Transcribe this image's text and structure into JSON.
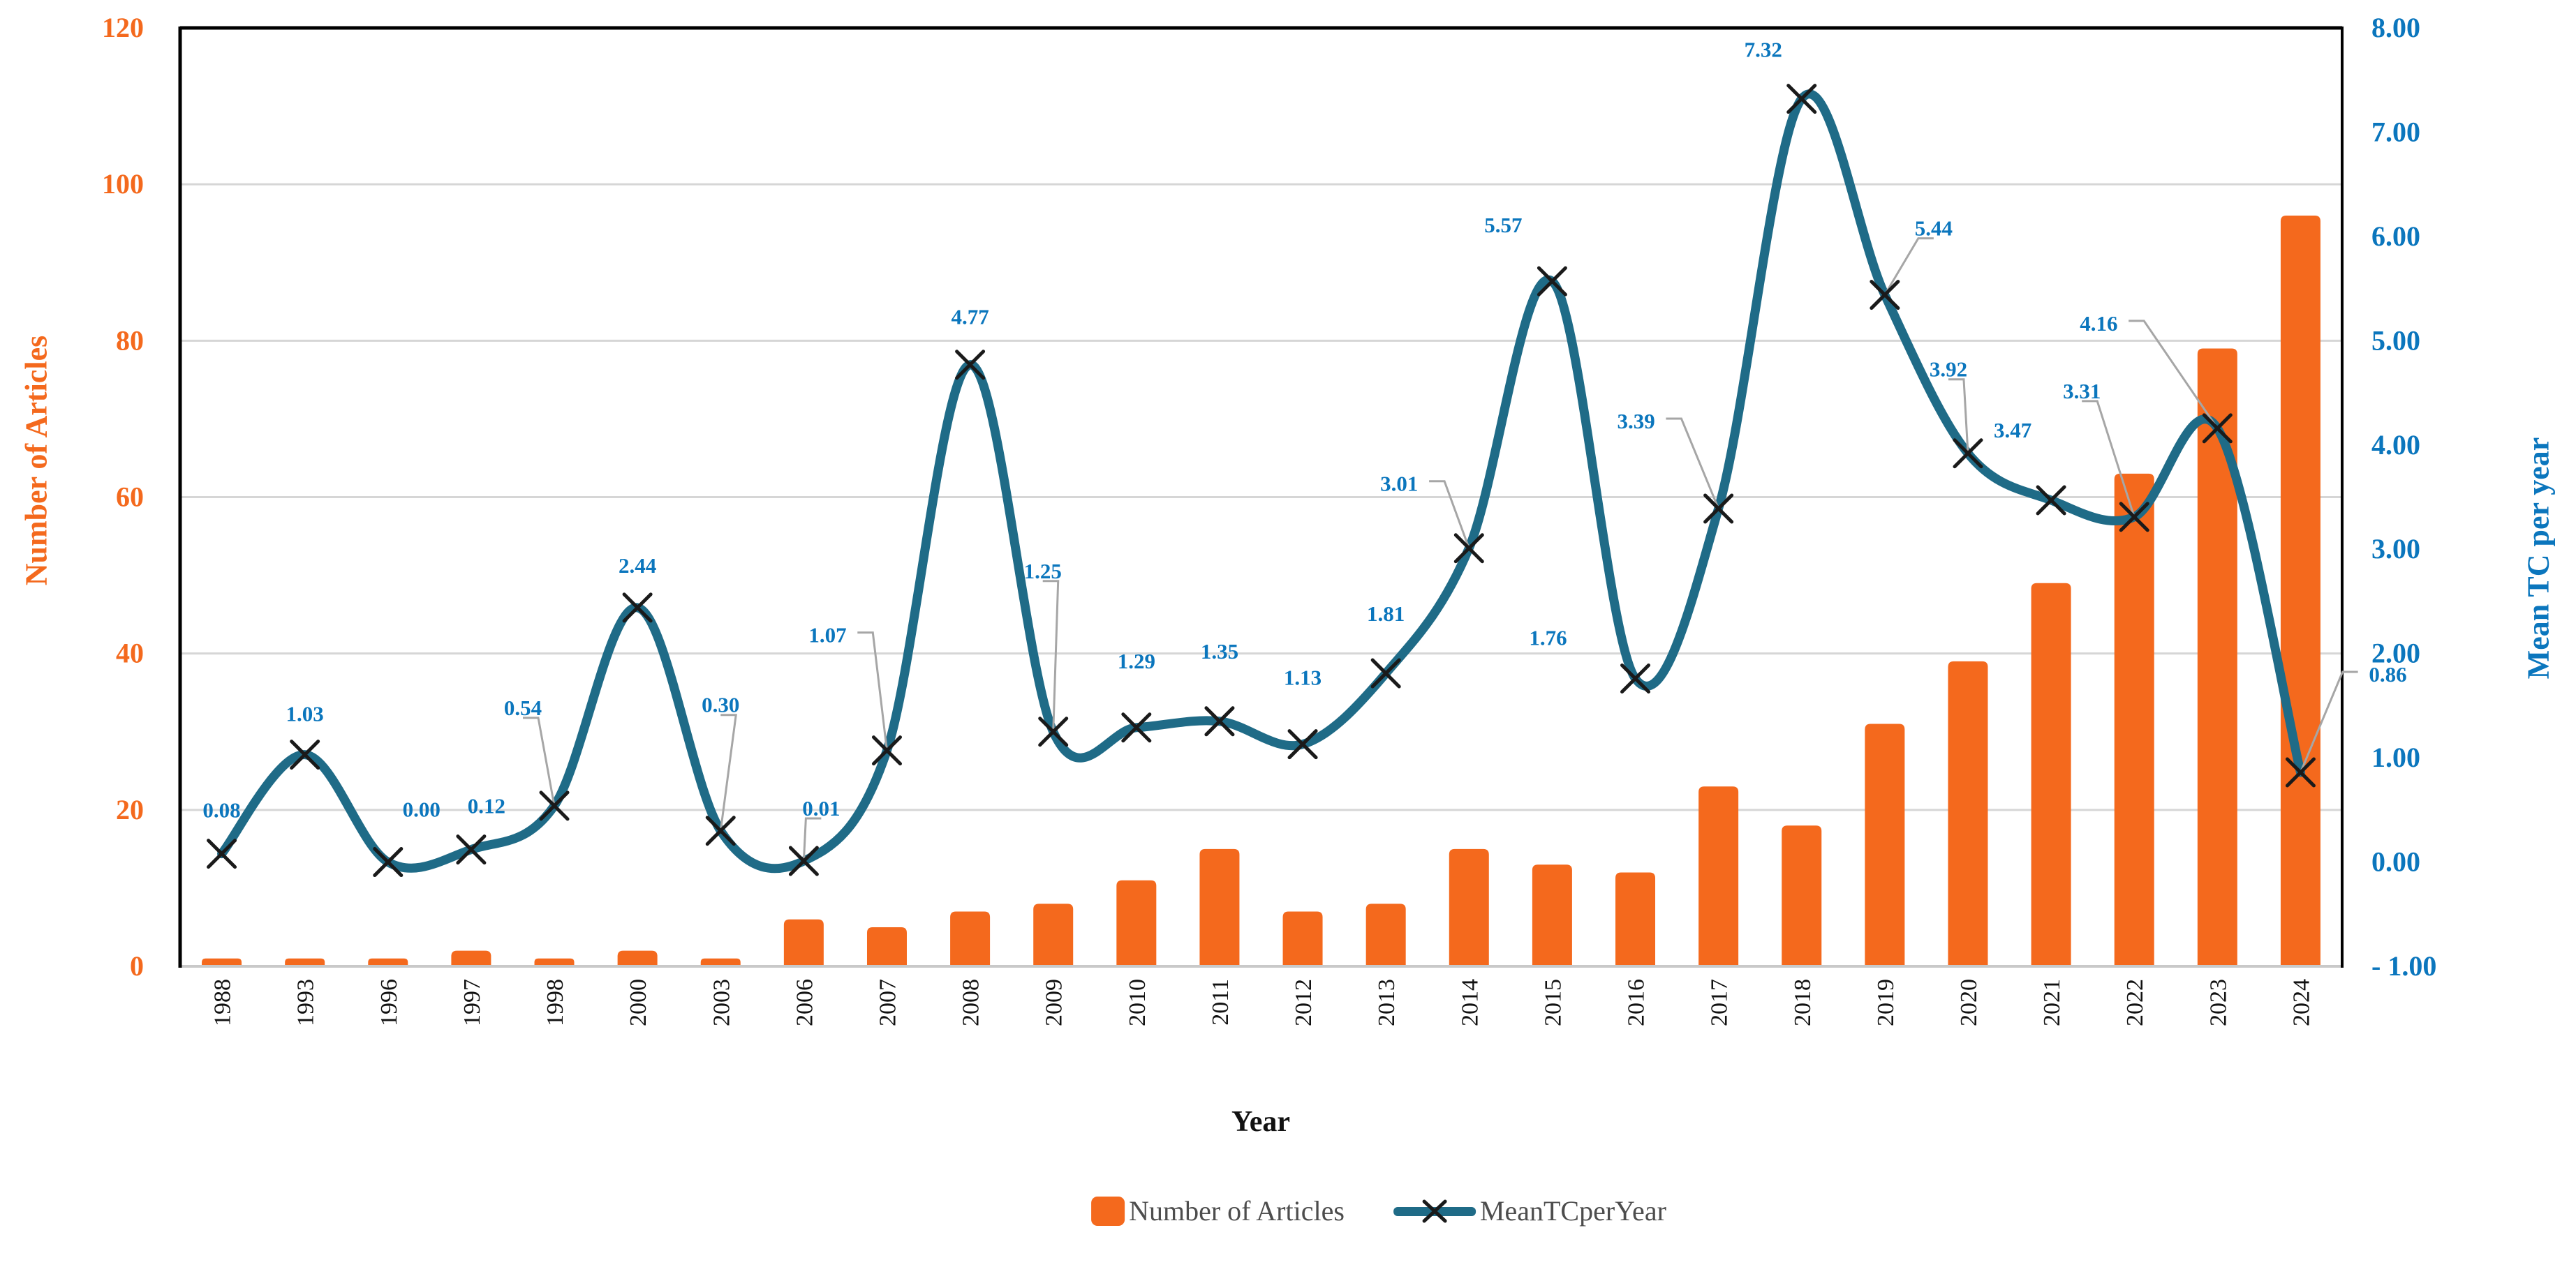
{
  "chart_data": {
    "type": "bar",
    "subtype": "combo-bar-line-dual-axis",
    "title": "",
    "xlabel": "Year",
    "grid": true,
    "legend_position": "bottom",
    "categories": [
      "1988",
      "1993",
      "1996",
      "1997",
      "1998",
      "2000",
      "2003",
      "2006",
      "2007",
      "2008",
      "2009",
      "2010",
      "2011",
      "2012",
      "2013",
      "2014",
      "2015",
      "2016",
      "2017",
      "2018",
      "2019",
      "2020",
      "2021",
      "2022",
      "2023",
      "2024"
    ],
    "series": [
      {
        "name": "Number of Articles",
        "type": "bar",
        "axis": "left",
        "color": "#F4691D",
        "values": [
          1,
          1,
          1,
          2,
          1,
          2,
          1,
          6,
          5,
          7,
          8,
          11,
          15,
          7,
          8,
          15,
          13,
          12,
          23,
          18,
          31,
          39,
          49,
          63,
          79,
          96
        ]
      },
      {
        "name": "MeanTCperYear",
        "type": "line",
        "axis": "right",
        "color": "#1F6B87",
        "marker": "x-cross",
        "marker_color": "#1a1a1a",
        "values": [
          0.08,
          1.03,
          0.0,
          0.12,
          0.54,
          2.44,
          0.3,
          0.01,
          1.07,
          4.77,
          1.25,
          1.29,
          1.35,
          1.13,
          1.81,
          3.01,
          5.57,
          1.76,
          3.39,
          7.32,
          5.44,
          3.92,
          3.47,
          3.31,
          4.16,
          0.86
        ],
        "point_labels": [
          "0.08",
          "1.03",
          "0.00",
          "0.12",
          "0.54",
          "2.44",
          "0.30",
          "0.01",
          "1.07",
          "4.77",
          "1.25",
          "1.29",
          "1.35",
          "1.13",
          "1.81",
          "3.01",
          "5.57",
          "1.76",
          "3.39",
          "7.32",
          "5.44",
          "3.92",
          "3.47",
          "3.31",
          "4.16",
          "0.86"
        ],
        "label_offsets": [
          [
            0,
            -62
          ],
          [
            0,
            -58
          ],
          [
            48,
            -75
          ],
          [
            22,
            -62
          ],
          [
            -45,
            -140
          ],
          [
            0,
            -60
          ],
          [
            0,
            -180
          ],
          [
            25,
            -75
          ],
          [
            -85,
            -165
          ],
          [
            0,
            -68
          ],
          [
            -15,
            -230
          ],
          [
            0,
            -95
          ],
          [
            0,
            -100
          ],
          [
            0,
            -95
          ],
          [
            0,
            -85
          ],
          [
            -100,
            -92
          ],
          [
            -70,
            -80
          ],
          [
            -125,
            -58
          ],
          [
            -118,
            -125
          ],
          [
            -55,
            -70
          ],
          [
            70,
            -95
          ],
          [
            -28,
            -120
          ],
          [
            -55,
            -100
          ],
          [
            -75,
            -180
          ],
          [
            -170,
            -150
          ],
          [
            125,
            -140
          ]
        ],
        "label_leaders": [
          false,
          false,
          false,
          false,
          true,
          false,
          true,
          true,
          true,
          false,
          true,
          false,
          false,
          false,
          false,
          true,
          false,
          false,
          true,
          false,
          true,
          true,
          false,
          true,
          true,
          true
        ]
      }
    ],
    "left_axis": {
      "title": "Number of Articles",
      "min": 0,
      "max": 120,
      "step": 20,
      "tick_labels": [
        "120",
        "100",
        "80",
        "60",
        "40",
        "20",
        "0"
      ],
      "color": "#F4691D"
    },
    "right_axis": {
      "title": "Mean TC per year",
      "min": -1,
      "max": 8,
      "step": 1,
      "tick_labels": [
        "8.00",
        "7.00",
        "6.00",
        "5.00",
        "4.00",
        "3.00",
        "2.00",
        "1.00",
        "0.00",
        "- 1.00"
      ],
      "color": "#0B76BD"
    },
    "colors": {
      "data_label": "#0B76BD",
      "leader_line": "#A6A6A6",
      "gridline": "#D6D6D6",
      "plot_border": "#000000",
      "baseline": "#C9C9C9",
      "year_label": "#111111",
      "legend_text": "#4D4D4D"
    }
  }
}
